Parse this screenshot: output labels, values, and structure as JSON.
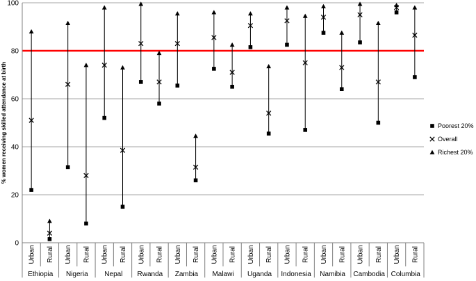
{
  "chart_data": {
    "type": "high-low-marker",
    "ylabel": "% women receiving skilled attendance at birth",
    "ylim": [
      0,
      100
    ],
    "yticks": [
      0,
      20,
      40,
      60,
      80,
      100
    ],
    "grid": true,
    "reference_line": {
      "y": 80,
      "color": "#ff0000"
    },
    "legend_position": "right",
    "series": [
      {
        "name": "Poorest 20%",
        "marker": "■"
      },
      {
        "name": "Overall",
        "marker": "×"
      },
      {
        "name": "Richest 20%",
        "marker": "▲"
      }
    ],
    "groups": [
      {
        "country": "Ethiopia",
        "points": [
          {
            "area": "Urban",
            "poorest": 22,
            "overall": 51,
            "richest": 88
          },
          {
            "area": "Rural",
            "poorest": 1.5,
            "overall": 4,
            "richest": 9
          }
        ]
      },
      {
        "country": "Nigeria",
        "points": [
          {
            "area": "Urban",
            "poorest": 31.5,
            "overall": 66,
            "richest": 91.5
          },
          {
            "area": "Rural",
            "poorest": 8,
            "overall": 28,
            "richest": 74
          }
        ]
      },
      {
        "country": "Nepal",
        "points": [
          {
            "area": "Urban",
            "poorest": 52,
            "overall": 74,
            "richest": 98
          },
          {
            "area": "Rural",
            "poorest": 15,
            "overall": 38.5,
            "richest": 73
          }
        ]
      },
      {
        "country": "Rwanda",
        "points": [
          {
            "area": "Urban",
            "poorest": 67,
            "overall": 83,
            "richest": 99.5
          },
          {
            "area": "Rural",
            "poorest": 58,
            "overall": 67,
            "richest": 79
          }
        ]
      },
      {
        "country": "Zambia",
        "points": [
          {
            "area": "Urban",
            "poorest": 65.5,
            "overall": 83,
            "richest": 95.5
          },
          {
            "area": "Rural",
            "poorest": 26,
            "overall": 31.5,
            "richest": 44.5
          }
        ]
      },
      {
        "country": "Malawi",
        "points": [
          {
            "area": "Urban",
            "poorest": 72.5,
            "overall": 85.5,
            "richest": 96
          },
          {
            "area": "Rural",
            "poorest": 65,
            "overall": 71,
            "richest": 82.5
          }
        ]
      },
      {
        "country": "Uganda",
        "points": [
          {
            "area": "Urban",
            "poorest": 81.5,
            "overall": 90.5,
            "richest": 95.5
          },
          {
            "area": "Rural",
            "poorest": 45.5,
            "overall": 54,
            "richest": 73.5
          }
        ]
      },
      {
        "country": "Indonesia",
        "points": [
          {
            "area": "Urban",
            "poorest": 82.5,
            "overall": 92.5,
            "richest": 98
          },
          {
            "area": "Rural",
            "poorest": 47,
            "overall": 75,
            "richest": 94.5
          }
        ]
      },
      {
        "country": "Namibia",
        "points": [
          {
            "area": "Urban",
            "poorest": 87.5,
            "overall": 94,
            "richest": 98.5
          },
          {
            "area": "Rural",
            "poorest": 64,
            "overall": 73,
            "richest": 87.5
          }
        ]
      },
      {
        "country": "Cambodia",
        "points": [
          {
            "area": "Urban",
            "poorest": 83.5,
            "overall": 95,
            "richest": 99.5
          },
          {
            "area": "Rural",
            "poorest": 50,
            "overall": 67,
            "richest": 91.5
          }
        ]
      },
      {
        "country": "Columbia",
        "points": [
          {
            "area": "Urban",
            "poorest": 96,
            "overall": 98,
            "richest": 99
          },
          {
            "area": "Rural",
            "poorest": 69,
            "overall": 86.5,
            "richest": 98
          }
        ]
      }
    ]
  }
}
